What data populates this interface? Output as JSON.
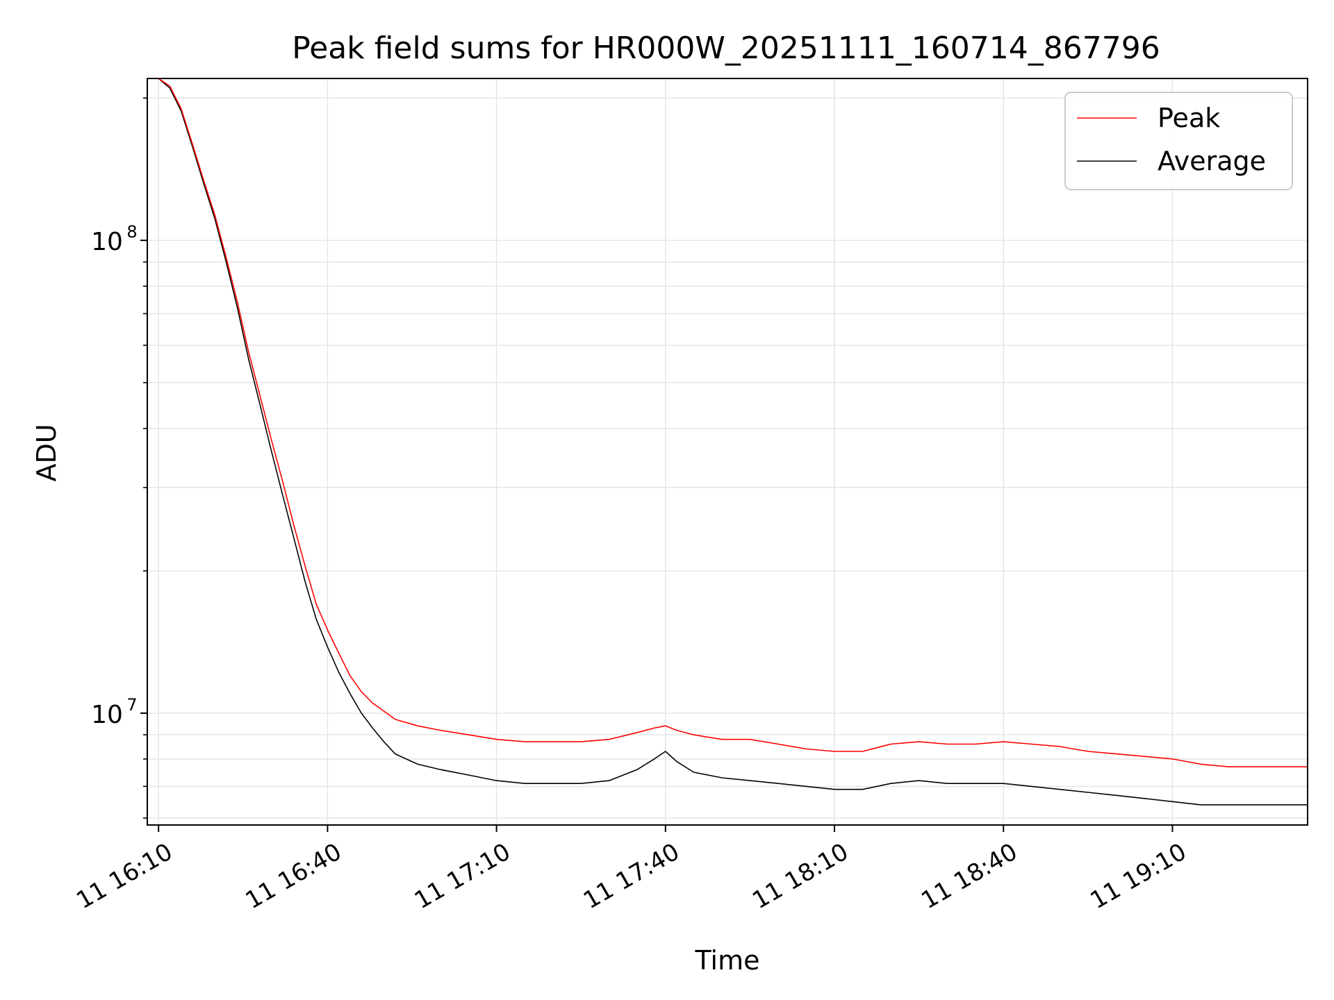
{
  "chart_data": {
    "type": "line",
    "title": "Peak field sums for HR000W_20251111_160714_867796",
    "xlabel": "Time",
    "ylabel": "ADU",
    "y_scale": "log",
    "ylim": [
      5800000,
      220000000
    ],
    "xlim": [
      "2025-11-11 16:08:00",
      "2025-11-11 19:34:00"
    ],
    "x_ticks": [
      {
        "time": "2025-11-11 16:10:00",
        "label": "11 16:10"
      },
      {
        "time": "2025-11-11 16:40:00",
        "label": "11 16:40"
      },
      {
        "time": "2025-11-11 17:10:00",
        "label": "11 17:10"
      },
      {
        "time": "2025-11-11 17:40:00",
        "label": "11 17:40"
      },
      {
        "time": "2025-11-11 18:10:00",
        "label": "11 18:10"
      },
      {
        "time": "2025-11-11 18:40:00",
        "label": "11 18:40"
      },
      {
        "time": "2025-11-11 19:10:00",
        "label": "11 19:10"
      }
    ],
    "y_ticks": [
      {
        "value": 10000000,
        "base": "10",
        "exp": "7"
      },
      {
        "value": 100000000,
        "base": "10",
        "exp": "8"
      }
    ],
    "grid": true,
    "legend": "top-right",
    "series": [
      {
        "name": "Peak",
        "color": "#ff0000",
        "x": [
          "2025-11-11 16:10:00",
          "2025-11-11 16:12:00",
          "2025-11-11 16:14:00",
          "2025-11-11 16:16:00",
          "2025-11-11 16:18:00",
          "2025-11-11 16:20:00",
          "2025-11-11 16:22:00",
          "2025-11-11 16:24:00",
          "2025-11-11 16:26:00",
          "2025-11-11 16:28:00",
          "2025-11-11 16:30:00",
          "2025-11-11 16:32:00",
          "2025-11-11 16:34:00",
          "2025-11-11 16:36:00",
          "2025-11-11 16:38:00",
          "2025-11-11 16:40:00",
          "2025-11-11 16:42:00",
          "2025-11-11 16:44:00",
          "2025-11-11 16:46:00",
          "2025-11-11 16:48:00",
          "2025-11-11 16:50:00",
          "2025-11-11 16:52:00",
          "2025-11-11 16:56:00",
          "2025-11-11 17:00:00",
          "2025-11-11 17:05:00",
          "2025-11-11 17:10:00",
          "2025-11-11 17:15:00",
          "2025-11-11 17:20:00",
          "2025-11-11 17:25:00",
          "2025-11-11 17:30:00",
          "2025-11-11 17:35:00",
          "2025-11-11 17:38:00",
          "2025-11-11 17:40:00",
          "2025-11-11 17:42:00",
          "2025-11-11 17:45:00",
          "2025-11-11 17:50:00",
          "2025-11-11 17:55:00",
          "2025-11-11 18:00:00",
          "2025-11-11 18:05:00",
          "2025-11-11 18:10:00",
          "2025-11-11 18:15:00",
          "2025-11-11 18:20:00",
          "2025-11-11 18:25:00",
          "2025-11-11 18:30:00",
          "2025-11-11 18:35:00",
          "2025-11-11 18:40:00",
          "2025-11-11 18:45:00",
          "2025-11-11 18:50:00",
          "2025-11-11 18:55:00",
          "2025-11-11 19:00:00",
          "2025-11-11 19:05:00",
          "2025-11-11 19:10:00",
          "2025-11-11 19:15:00",
          "2025-11-11 19:20:00",
          "2025-11-11 19:25:00",
          "2025-11-11 19:30:00",
          "2025-11-11 19:34:00"
        ],
        "y": [
          220000000,
          212000000,
          190000000,
          160000000,
          134000000,
          113000000,
          92000000,
          74000000,
          58000000,
          47000000,
          38000000,
          31000000,
          25000000,
          20500000,
          17000000,
          15000000,
          13400000,
          12000000,
          11100000,
          10500000,
          10100000,
          9700000,
          9400000,
          9200000,
          9000000,
          8800000,
          8700000,
          8700000,
          8700000,
          8800000,
          9100000,
          9300000,
          9400000,
          9200000,
          9000000,
          8800000,
          8800000,
          8600000,
          8400000,
          8300000,
          8300000,
          8600000,
          8700000,
          8600000,
          8600000,
          8700000,
          8600000,
          8500000,
          8300000,
          8200000,
          8100000,
          8000000,
          7800000,
          7700000,
          7700000,
          7700000,
          7700000
        ]
      },
      {
        "name": "Average",
        "color": "#000000",
        "x": [
          "2025-11-11 16:10:00",
          "2025-11-11 16:12:00",
          "2025-11-11 16:14:00",
          "2025-11-11 16:16:00",
          "2025-11-11 16:18:00",
          "2025-11-11 16:20:00",
          "2025-11-11 16:22:00",
          "2025-11-11 16:24:00",
          "2025-11-11 16:26:00",
          "2025-11-11 16:28:00",
          "2025-11-11 16:30:00",
          "2025-11-11 16:32:00",
          "2025-11-11 16:34:00",
          "2025-11-11 16:36:00",
          "2025-11-11 16:38:00",
          "2025-11-11 16:40:00",
          "2025-11-11 16:42:00",
          "2025-11-11 16:44:00",
          "2025-11-11 16:46:00",
          "2025-11-11 16:48:00",
          "2025-11-11 16:50:00",
          "2025-11-11 16:52:00",
          "2025-11-11 16:56:00",
          "2025-11-11 17:00:00",
          "2025-11-11 17:05:00",
          "2025-11-11 17:10:00",
          "2025-11-11 17:15:00",
          "2025-11-11 17:20:00",
          "2025-11-11 17:25:00",
          "2025-11-11 17:30:00",
          "2025-11-11 17:35:00",
          "2025-11-11 17:38:00",
          "2025-11-11 17:40:00",
          "2025-11-11 17:42:00",
          "2025-11-11 17:45:00",
          "2025-11-11 17:50:00",
          "2025-11-11 17:55:00",
          "2025-11-11 18:00:00",
          "2025-11-11 18:05:00",
          "2025-11-11 18:10:00",
          "2025-11-11 18:15:00",
          "2025-11-11 18:20:00",
          "2025-11-11 18:25:00",
          "2025-11-11 18:30:00",
          "2025-11-11 18:35:00",
          "2025-11-11 18:40:00",
          "2025-11-11 18:45:00",
          "2025-11-11 18:50:00",
          "2025-11-11 18:55:00",
          "2025-11-11 19:00:00",
          "2025-11-11 19:05:00",
          "2025-11-11 19:10:00",
          "2025-11-11 19:15:00",
          "2025-11-11 19:20:00",
          "2025-11-11 19:25:00",
          "2025-11-11 19:30:00",
          "2025-11-11 19:34:00"
        ],
        "y": [
          220000000,
          210000000,
          188000000,
          158000000,
          132000000,
          111000000,
          90000000,
          72000000,
          56000000,
          45000000,
          36000000,
          29000000,
          23500000,
          19000000,
          15800000,
          13800000,
          12200000,
          11000000,
          10000000,
          9300000,
          8700000,
          8200000,
          7800000,
          7600000,
          7400000,
          7200000,
          7100000,
          7100000,
          7100000,
          7200000,
          7600000,
          8000000,
          8300000,
          7900000,
          7500000,
          7300000,
          7200000,
          7100000,
          7000000,
          6900000,
          6900000,
          7100000,
          7200000,
          7100000,
          7100000,
          7100000,
          7000000,
          6900000,
          6800000,
          6700000,
          6600000,
          6500000,
          6400000,
          6400000,
          6400000,
          6400000,
          6400000
        ]
      }
    ]
  }
}
